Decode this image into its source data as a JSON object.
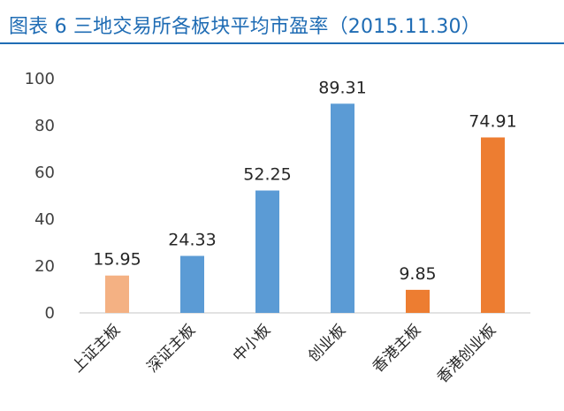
{
  "title": "图表 6  三地交易所各板块平均市盈率（2015.11.30）",
  "chart_data": {
    "type": "bar",
    "title": "图表 6  三地交易所各板块平均市盈率（2015.11.30）",
    "xlabel": "",
    "ylabel": "",
    "ylim": [
      0,
      100
    ],
    "yticks": [
      0,
      20,
      40,
      60,
      80,
      100
    ],
    "grid": false,
    "legend": "none",
    "categories": [
      "上证主板",
      "深证主板",
      "中小板",
      "创业板",
      "香港主板",
      "香港创业板"
    ],
    "values": [
      15.95,
      24.33,
      52.25,
      89.31,
      9.85,
      74.91
    ],
    "value_labels": [
      "15.95",
      "24.33",
      "52.25",
      "89.31",
      "9.85",
      "74.91"
    ],
    "colors": [
      "#f4b183",
      "#5b9bd5",
      "#5b9bd5",
      "#5b9bd5",
      "#ed7d31",
      "#ed7d31"
    ]
  },
  "colors": {
    "title": "#1f6cb4",
    "axis": "#d9d9d9"
  }
}
